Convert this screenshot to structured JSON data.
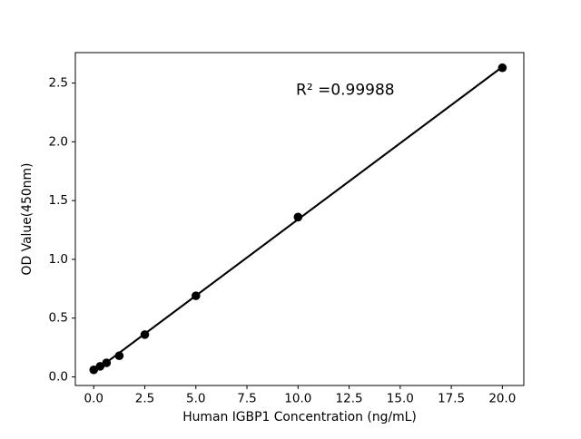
{
  "figure": {
    "background_color": "#ffffff",
    "foreground_color": "#000000"
  },
  "chart_data": {
    "type": "scatter",
    "title": "",
    "xlabel": "Human IGBP1 Concentration (ng/mL)",
    "ylabel": "OD Value(450nm)",
    "series": [
      {
        "name": "standard-points",
        "x": [
          0,
          0.313,
          0.625,
          1.25,
          2.5,
          5,
          10,
          20
        ],
        "y": [
          0.06,
          0.09,
          0.12,
          0.18,
          0.36,
          0.69,
          1.36,
          2.63
        ],
        "marker": "circle",
        "marker_color": "#000000"
      }
    ],
    "fit_line": {
      "kind": "linear-regression",
      "extent_x": [
        0,
        20
      ],
      "color": "#000000"
    },
    "annotation": {
      "text": "R² =0.99988",
      "x": 9.9,
      "y": 2.44
    },
    "xticks": [
      0,
      2.5,
      5,
      7.5,
      10,
      12.5,
      15,
      17.5,
      20
    ],
    "xtick_labels": [
      "0.0",
      "2.5",
      "5.0",
      "7.5",
      "10.0",
      "12.5",
      "15.0",
      "17.5",
      "20.0"
    ],
    "yticks": [
      0,
      0.5,
      1,
      1.5,
      2,
      2.5
    ],
    "ytick_labels": [
      "0.0",
      "0.5",
      "1.0",
      "1.5",
      "2.0",
      "2.5"
    ],
    "xlim": [
      -0.9,
      21.05
    ],
    "ylim": [
      -0.073,
      2.759
    ],
    "grid": false,
    "legend": null
  }
}
